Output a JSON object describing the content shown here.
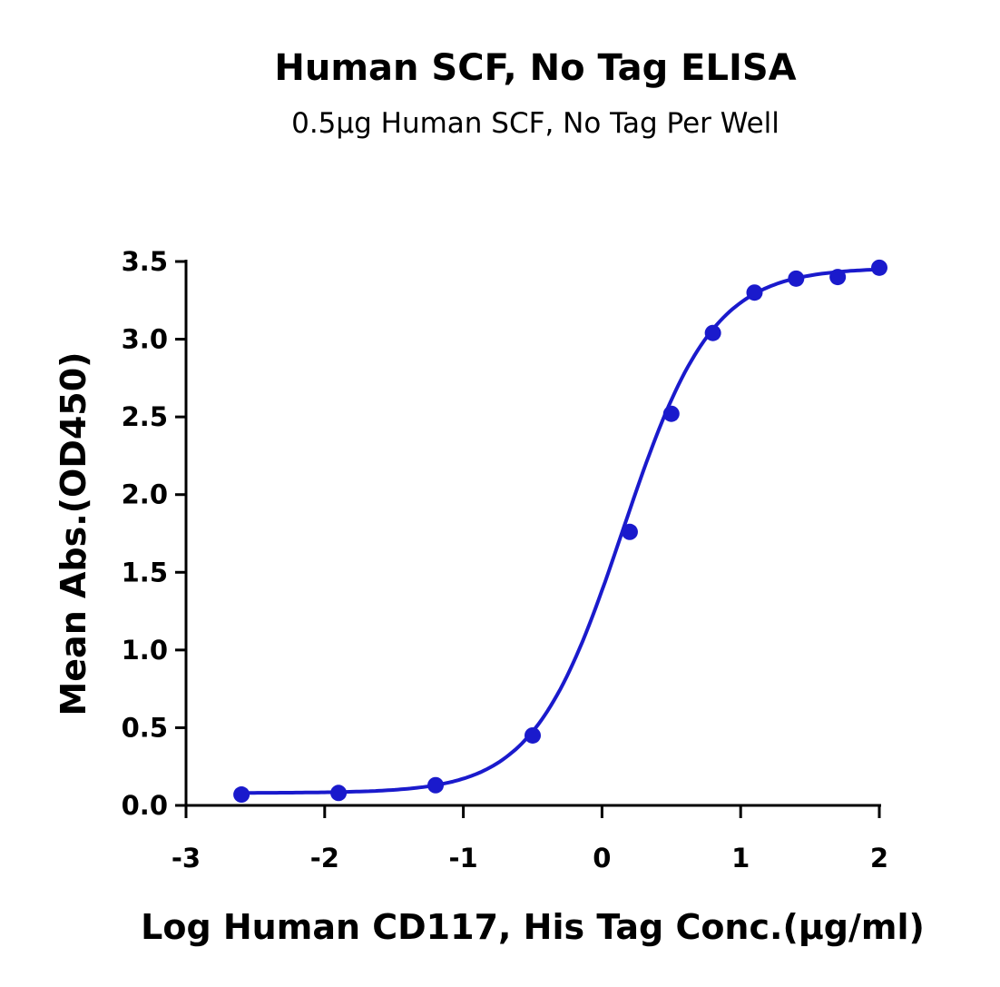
{
  "chart_data": {
    "type": "scatter",
    "title": "Human SCF, No Tag ELISA",
    "subtitle": "0.5μg Human SCF, No Tag Per Well",
    "xlabel": "Log Human CD117, His Tag Conc.(μg/ml)",
    "ylabel": "Mean Abs.(OD450)",
    "xlim": [
      -3,
      2
    ],
    "ylim": [
      0,
      3.5
    ],
    "xticks": [
      "-3",
      "-2",
      "-1",
      "0",
      "1",
      "2"
    ],
    "yticks": [
      "0.0",
      "0.5",
      "1.0",
      "1.5",
      "2.0",
      "2.5",
      "3.0",
      "3.5"
    ],
    "grid": false,
    "color": "#1a1acc",
    "points": [
      {
        "x": -2.6,
        "y": 0.07
      },
      {
        "x": -1.9,
        "y": 0.08
      },
      {
        "x": -1.2,
        "y": 0.13
      },
      {
        "x": -0.5,
        "y": 0.45
      },
      {
        "x": 0.2,
        "y": 1.76
      },
      {
        "x": 0.5,
        "y": 2.52
      },
      {
        "x": 0.8,
        "y": 3.04
      },
      {
        "x": 1.1,
        "y": 3.3
      },
      {
        "x": 1.4,
        "y": 3.39
      },
      {
        "x": 1.7,
        "y": 3.4
      },
      {
        "x": 2.0,
        "y": 3.46
      }
    ],
    "fit_curve": {
      "model": "4PL",
      "bottom": 0.08,
      "top": 3.46,
      "log_ec50": 0.15,
      "hill": 1.35
    }
  }
}
